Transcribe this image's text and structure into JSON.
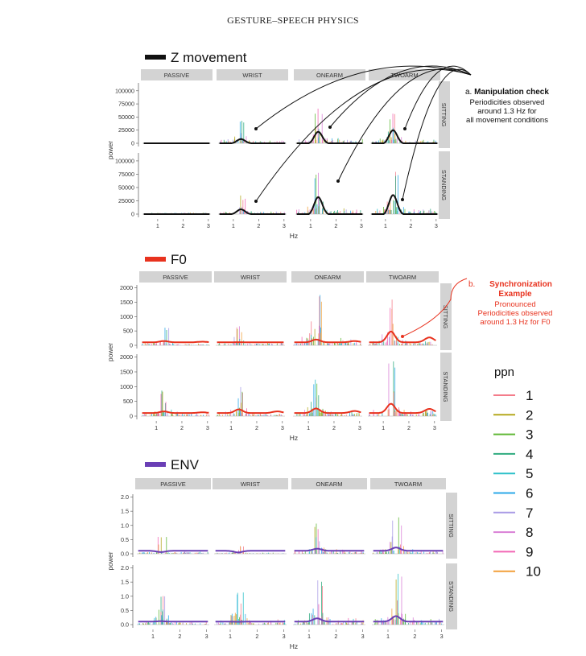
{
  "header": "GESTURE–SPEECH PHYSICS",
  "colors": {
    "strip_bg": "#d3d3d3",
    "z_fit": "#111111",
    "f0_fit": "#e8321e",
    "env_fit": "#6a3fb5",
    "annotation_a": "#111111",
    "annotation_b": "#e8321e"
  },
  "chart_data": [
    {
      "type": "line",
      "title": "Z movement",
      "legend_swatch_color": "#111111",
      "xlabel": "Hz",
      "ylabel": "power",
      "xlim": [
        0.4,
        3.1
      ],
      "ylim": [
        0,
        115000
      ],
      "x_ticks": [
        "1",
        "2",
        "3"
      ],
      "y_ticks": [
        "0",
        "25000",
        "50000",
        "75000",
        "100000"
      ],
      "columns": [
        "PASSIVE",
        "WRIST",
        "ONEARM",
        "TWOARM"
      ],
      "rows": [
        "SITTING",
        "STANDING"
      ],
      "peak_hz": 1.3,
      "fit_peak_power": {
        "SITTING": {
          "PASSIVE": 0,
          "WRIST": 8000,
          "ONEARM": 22000,
          "TWOARM": 25000
        },
        "STANDING": {
          "PASSIVE": 0,
          "WRIST": 9000,
          "ONEARM": 32000,
          "TWOARM": 36000
        }
      },
      "max_spike_power": {
        "SITTING": {
          "PASSIVE": 0,
          "WRIST": 48000,
          "ONEARM": 72000,
          "TWOARM": 60000
        },
        "STANDING": {
          "PASSIVE": 9000,
          "WRIST": 35000,
          "ONEARM": 80000,
          "TWOARM": 85000
        }
      },
      "annotation": {
        "label": "a.",
        "bold": "Manipulation check",
        "lines": [
          "Periodicities observed",
          "around 1.3 Hz for",
          "all movement conditions"
        ]
      }
    },
    {
      "type": "line",
      "title": "F0",
      "legend_swatch_color": "#e8321e",
      "xlabel": "Hz",
      "ylabel": "power",
      "xlim": [
        0.4,
        3.1
      ],
      "ylim": [
        0,
        2100
      ],
      "x_ticks": [
        "1",
        "2",
        "3"
      ],
      "y_ticks": [
        "0",
        "500",
        "1000",
        "1500",
        "2000"
      ],
      "columns": [
        "PASSIVE",
        "WRIST",
        "ONEARM",
        "TWOARM"
      ],
      "rows": [
        "SITTING",
        "STANDING"
      ],
      "peak_hz": 1.3,
      "fit_peak_power": {
        "SITTING": {
          "PASSIVE": 150,
          "WRIST": 110,
          "ONEARM": 200,
          "TWOARM": 480
        },
        "STANDING": {
          "PASSIVE": 160,
          "WRIST": 230,
          "ONEARM": 260,
          "TWOARM": 420
        }
      },
      "max_spike_power": {
        "SITTING": {
          "PASSIVE": 620,
          "WRIST": 750,
          "ONEARM": 1900,
          "TWOARM": 1650
        },
        "STANDING": {
          "PASSIVE": 950,
          "WRIST": 1050,
          "ONEARM": 1300,
          "TWOARM": 1900
        }
      },
      "annotation": {
        "label": "b.",
        "bold": "Synchronization Example",
        "lines": [
          "Pronounced",
          "Periodicities observed",
          "around 1.3 Hz for F0"
        ]
      }
    },
    {
      "type": "line",
      "title": "ENV",
      "legend_swatch_color": "#6a3fb5",
      "xlabel": "Hz",
      "ylabel": "power",
      "xlim": [
        0.4,
        3.1
      ],
      "ylim": [
        0,
        2.1
      ],
      "x_ticks": [
        "1",
        "2",
        "3"
      ],
      "y_ticks": [
        "0.0",
        "0.5",
        "1.0",
        "1.5",
        "2.0"
      ],
      "columns": [
        "PASSIVE",
        "WRIST",
        "ONEARM",
        "TWOARM"
      ],
      "rows": [
        "SITTING",
        "STANDING"
      ],
      "peak_hz": 1.3,
      "fit_peak_power": {
        "SITTING": {
          "PASSIVE": 0.06,
          "WRIST": 0.05,
          "ONEARM": 0.18,
          "TWOARM": 0.22
        },
        "STANDING": {
          "PASSIVE": 0.12,
          "WRIST": 0.1,
          "ONEARM": 0.22,
          "TWOARM": 0.3
        }
      },
      "max_spike_power": {
        "SITTING": {
          "PASSIVE": 0.6,
          "WRIST": 0.3,
          "ONEARM": 1.15,
          "TWOARM": 1.3
        },
        "STANDING": {
          "PASSIVE": 1.1,
          "WRIST": 1.4,
          "ONEARM": 1.6,
          "TWOARM": 1.9
        }
      }
    }
  ],
  "ppn_legend": {
    "title": "ppn",
    "entries": [
      {
        "label": "1",
        "color": "#f47c8a"
      },
      {
        "label": "2",
        "color": "#b5a91e"
      },
      {
        "label": "3",
        "color": "#5fb834"
      },
      {
        "label": "4",
        "color": "#2fab7f"
      },
      {
        "label": "5",
        "color": "#2cc0c9"
      },
      {
        "label": "6",
        "color": "#2ba9e8"
      },
      {
        "label": "7",
        "color": "#a99be6"
      },
      {
        "label": "8",
        "color": "#d97fd6"
      },
      {
        "label": "9",
        "color": "#f266b5"
      },
      {
        "label": "10",
        "color": "#f2a03a"
      }
    ]
  }
}
